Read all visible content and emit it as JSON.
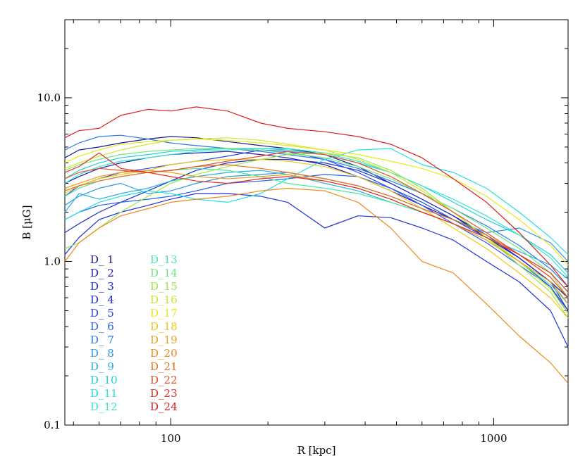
{
  "chart_data": {
    "type": "line",
    "xlabel": "R [kpc]",
    "ylabel": "B [μG]",
    "xscale": "log",
    "yscale": "log",
    "xlim": [
      47,
      1700
    ],
    "ylim": [
      0.1,
      30
    ],
    "x_ticks": [
      {
        "value": 100,
        "label": "100"
      },
      {
        "value": 1000,
        "label": "1000"
      }
    ],
    "y_ticks": [
      {
        "value": 0.1,
        "label": "0.1"
      },
      {
        "value": 1.0,
        "label": "1.0"
      },
      {
        "value": 10.0,
        "label": "10.0"
      }
    ],
    "legend_placement": "lower-left",
    "x": [
      47,
      52,
      60,
      70,
      85,
      100,
      120,
      150,
      190,
      230,
      300,
      380,
      480,
      600,
      750,
      950,
      1200,
      1500,
      1700
    ],
    "series": [
      {
        "name": "D_ 1",
        "color": "#1a1a8c",
        "values": [
          4.3,
          4.8,
          5.0,
          5.3,
          5.6,
          5.8,
          5.7,
          5.4,
          5.1,
          4.9,
          4.5,
          3.8,
          3.0,
          2.4,
          1.9,
          1.4,
          1.05,
          0.75,
          0.6
        ]
      },
      {
        "name": "D_ 2",
        "color": "#1c1cae",
        "values": [
          3.0,
          3.3,
          3.7,
          4.0,
          4.3,
          4.5,
          4.6,
          4.7,
          4.5,
          4.3,
          3.9,
          3.3,
          2.7,
          2.2,
          1.8,
          1.4,
          1.05,
          0.75,
          0.55
        ]
      },
      {
        "name": "D_ 3",
        "color": "#1c2cc8",
        "values": [
          1.5,
          1.7,
          2.0,
          2.3,
          2.7,
          3.1,
          3.6,
          4.0,
          4.2,
          4.2,
          4.0,
          3.6,
          3.0,
          2.4,
          1.9,
          1.45,
          1.05,
          0.75,
          0.5
        ]
      },
      {
        "name": "D_ 4",
        "color": "#2030d8",
        "values": [
          1.1,
          1.4,
          1.8,
          2.0,
          2.2,
          2.4,
          2.6,
          2.6,
          2.5,
          2.3,
          1.6,
          1.9,
          1.85,
          1.6,
          1.35,
          1.0,
          0.75,
          0.5,
          0.3
        ]
      },
      {
        "name": "D_ 5",
        "color": "#2848e8",
        "values": [
          2.5,
          2.9,
          3.2,
          3.5,
          3.7,
          3.9,
          4.1,
          4.4,
          4.8,
          4.7,
          4.2,
          3.5,
          2.8,
          2.3,
          1.8,
          1.4,
          1.0,
          0.7,
          0.5
        ]
      },
      {
        "name": "D_ 6",
        "color": "#2860ee",
        "values": [
          1.8,
          2.0,
          2.2,
          2.3,
          2.4,
          2.5,
          2.7,
          3.0,
          3.1,
          3.2,
          3.4,
          3.3,
          2.8,
          2.2,
          1.7,
          1.3,
          0.95,
          0.7,
          0.48
        ]
      },
      {
        "name": "D_ 7",
        "color": "#2a7ae8",
        "values": [
          4.8,
          5.3,
          5.8,
          5.9,
          5.6,
          5.3,
          5.1,
          4.9,
          4.7,
          4.5,
          4.2,
          3.7,
          3.1,
          2.6,
          2.1,
          1.65,
          1.25,
          0.9,
          0.7
        ]
      },
      {
        "name": "D_ 8",
        "color": "#2a96e8",
        "values": [
          2.2,
          2.5,
          2.8,
          3.0,
          2.6,
          2.7,
          3.0,
          3.3,
          3.4,
          3.5,
          3.2,
          2.9,
          2.5,
          2.1,
          1.8,
          1.5,
          1.6,
          1.3,
          1.0
        ]
      },
      {
        "name": "D_ 9",
        "color": "#28b2e2",
        "values": [
          2.0,
          2.6,
          2.4,
          2.6,
          2.8,
          3.1,
          3.3,
          3.5,
          3.6,
          3.4,
          3.0,
          2.7,
          2.3,
          2.0,
          1.7,
          1.4,
          1.15,
          0.95,
          0.78
        ]
      },
      {
        "name": "D_10",
        "color": "#22cede",
        "values": [
          3.2,
          3.6,
          4.0,
          4.3,
          4.5,
          4.7,
          4.8,
          4.9,
          4.9,
          4.8,
          4.5,
          4.0,
          3.5,
          2.9,
          2.3,
          1.8,
          1.45,
          1.1,
          0.85
        ]
      },
      {
        "name": "D_11",
        "color": "#22e0e0",
        "values": [
          1.8,
          2.0,
          2.3,
          2.5,
          2.7,
          2.6,
          2.4,
          2.3,
          2.6,
          3.2,
          4.2,
          4.8,
          4.9,
          3.9,
          3.5,
          2.8,
          2.0,
          1.4,
          1.1
        ]
      },
      {
        "name": "D_12",
        "color": "#38e8c8",
        "values": [
          3.0,
          3.4,
          3.8,
          4.1,
          4.3,
          4.5,
          4.7,
          4.8,
          4.9,
          4.9,
          4.6,
          4.1,
          3.5,
          2.9,
          2.4,
          1.9,
          1.45,
          1.05,
          0.8
        ]
      },
      {
        "name": "D_13",
        "color": "#48e8a8",
        "values": [
          2.5,
          2.8,
          3.1,
          3.3,
          3.5,
          3.6,
          3.7,
          3.6,
          3.3,
          3.0,
          2.8,
          2.6,
          2.3,
          2.0,
          1.7,
          1.35,
          1.0,
          0.72,
          0.55
        ]
      },
      {
        "name": "D_14",
        "color": "#6ee87a",
        "values": [
          3.6,
          3.9,
          4.2,
          4.5,
          4.7,
          4.8,
          4.9,
          4.9,
          4.8,
          4.6,
          4.3,
          3.8,
          3.2,
          2.6,
          2.1,
          1.6,
          1.2,
          0.85,
          0.6
        ]
      },
      {
        "name": "D_15",
        "color": "#9ae84e",
        "values": [
          1.2,
          1.3,
          1.6,
          2.0,
          2.5,
          3.0,
          3.4,
          3.8,
          4.2,
          4.5,
          4.6,
          4.3,
          3.6,
          2.8,
          2.0,
          1.4,
          0.95,
          0.65,
          0.45
        ]
      },
      {
        "name": "D_16",
        "color": "#c8e830",
        "values": [
          3.7,
          4.0,
          4.4,
          4.8,
          5.2,
          5.5,
          5.6,
          5.7,
          5.5,
          5.2,
          4.8,
          4.2,
          3.5,
          2.7,
          2.0,
          1.4,
          1.0,
          0.68,
          0.48
        ]
      },
      {
        "name": "D_17",
        "color": "#e8e81c",
        "values": [
          4.0,
          4.4,
          4.8,
          5.2,
          5.4,
          5.5,
          5.6,
          5.5,
          5.3,
          5.1,
          4.8,
          4.5,
          4.1,
          3.7,
          3.2,
          2.5,
          1.8,
          1.25,
          0.95
        ]
      },
      {
        "name": "D_18",
        "color": "#f0c818",
        "values": [
          2.6,
          2.9,
          3.2,
          3.4,
          3.6,
          3.9,
          4.1,
          4.2,
          4.2,
          4.1,
          3.8,
          3.3,
          2.7,
          2.1,
          1.6,
          1.2,
          0.85,
          0.6,
          0.45
        ]
      },
      {
        "name": "D_19",
        "color": "#f0a020",
        "values": [
          2.8,
          3.0,
          3.3,
          3.5,
          3.6,
          3.5,
          3.3,
          3.2,
          3.3,
          3.4,
          3.1,
          2.8,
          2.4,
          2.0,
          1.7,
          1.35,
          1.0,
          0.75,
          0.55
        ]
      },
      {
        "name": "D_20",
        "color": "#ec8a1c",
        "values": [
          1.0,
          1.3,
          1.6,
          1.9,
          2.1,
          2.3,
          2.4,
          2.5,
          2.7,
          2.8,
          2.7,
          2.3,
          1.6,
          1.0,
          0.85,
          0.55,
          0.35,
          0.24,
          0.18
        ]
      },
      {
        "name": "D_21",
        "color": "#e87020",
        "values": [
          2.7,
          2.9,
          3.1,
          3.3,
          3.5,
          3.6,
          3.8,
          3.9,
          3.7,
          3.5,
          3.2,
          2.9,
          2.5,
          2.1,
          1.8,
          1.45,
          1.1,
          0.8,
          0.6
        ]
      },
      {
        "name": "D_22",
        "color": "#e45020",
        "values": [
          3.2,
          3.5,
          3.7,
          3.6,
          3.5,
          3.6,
          3.8,
          4.1,
          4.4,
          4.7,
          4.5,
          4.0,
          3.3,
          2.6,
          2.0,
          1.5,
          1.1,
          0.8,
          0.6
        ]
      },
      {
        "name": "D_23",
        "color": "#e23020",
        "values": [
          3.5,
          3.8,
          4.6,
          3.7,
          3.5,
          3.3,
          3.1,
          3.0,
          3.2,
          3.3,
          3.1,
          2.8,
          2.4,
          2.0,
          1.7,
          1.4,
          1.1,
          0.85,
          0.65
        ]
      },
      {
        "name": "D_24",
        "color": "#dc1e1e",
        "values": [
          5.7,
          6.3,
          6.5,
          7.8,
          8.5,
          8.3,
          8.8,
          8.3,
          7.0,
          6.5,
          6.2,
          5.8,
          5.2,
          4.3,
          3.2,
          2.3,
          1.5,
          0.95,
          0.7
        ]
      }
    ]
  }
}
